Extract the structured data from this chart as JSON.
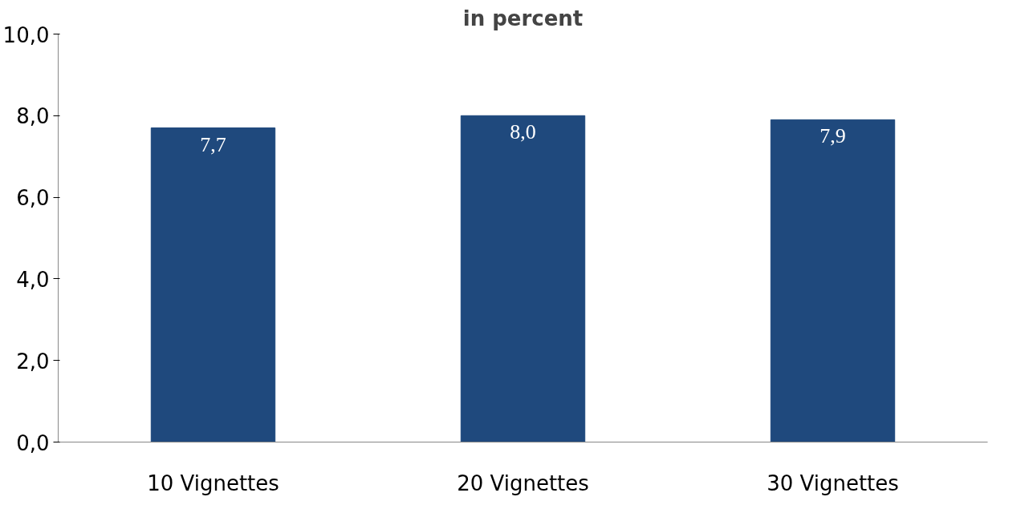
{
  "chart_data": {
    "type": "bar",
    "title": "in percent",
    "categories": [
      "10 Vignettes",
      "20 Vignettes",
      "30 Vignettes"
    ],
    "values": [
      7.7,
      8.0,
      7.9
    ],
    "value_labels": [
      "7,7",
      "8,0",
      "7,9"
    ],
    "color": "#1f497d",
    "ylim": [
      0,
      10
    ],
    "yticks": [
      {
        "value": 0,
        "label": "0,0"
      },
      {
        "value": 2,
        "label": "2,0"
      },
      {
        "value": 4,
        "label": "4,0"
      },
      {
        "value": 6,
        "label": "6,0"
      },
      {
        "value": 8,
        "label": "8,0"
      },
      {
        "value": 10,
        "label": "10,0"
      }
    ],
    "grid": false
  }
}
